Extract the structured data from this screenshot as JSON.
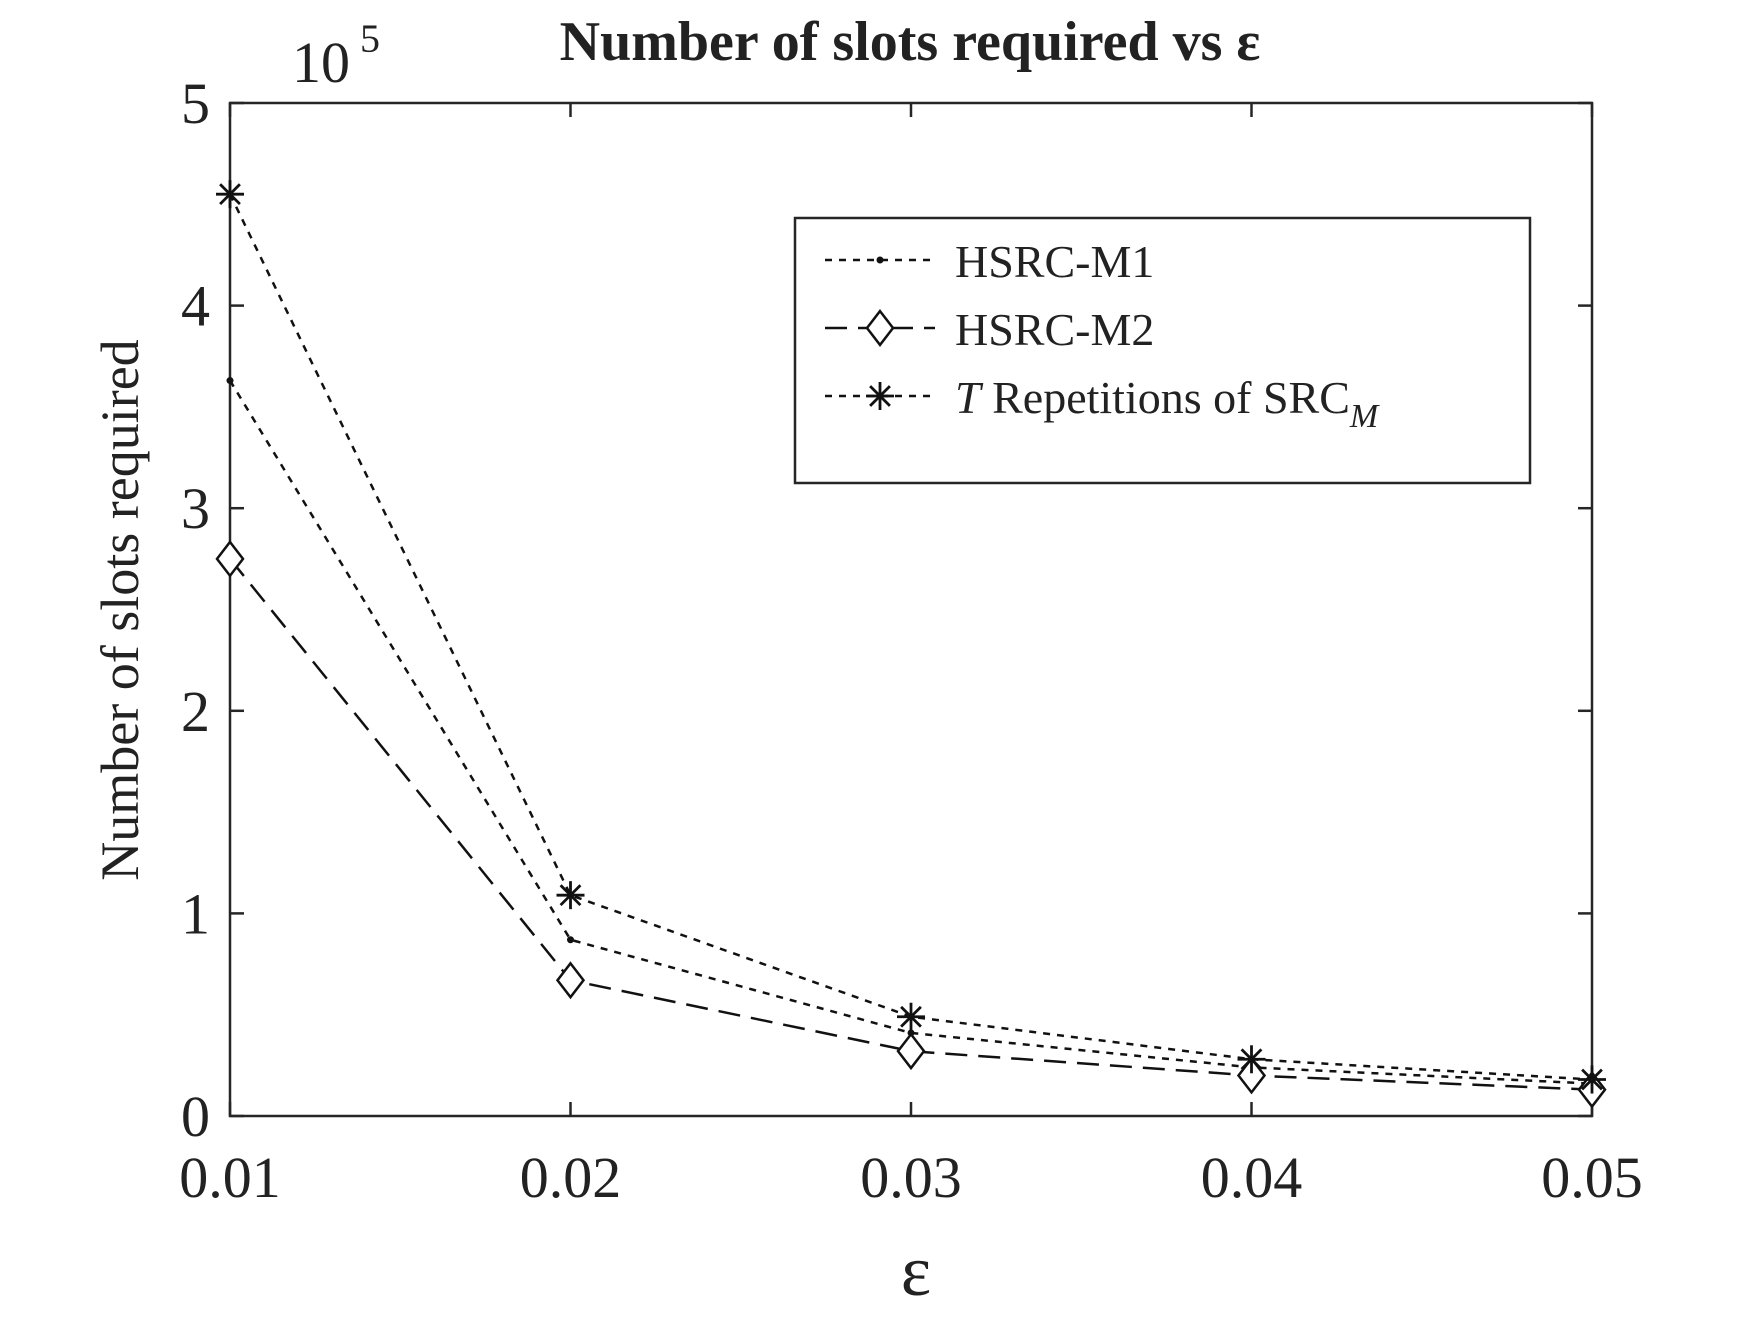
{
  "chart_data": {
    "type": "line",
    "title": "Number of slots required vs ε",
    "xlabel": "ε",
    "ylabel": "Number of slots required",
    "y_multiplier_label": "10",
    "y_multiplier_exponent": "5",
    "x": [
      0.01,
      0.02,
      0.03,
      0.04,
      0.05
    ],
    "x_tick_labels": [
      "0.01",
      "0.02",
      "0.03",
      "0.04",
      "0.05"
    ],
    "xlim": [
      0.01,
      0.05
    ],
    "ylim": [
      0,
      5
    ],
    "y_ticks": [
      0,
      1,
      2,
      3,
      4,
      5
    ],
    "y_tick_labels": [
      "0",
      "1",
      "2",
      "3",
      "4",
      "5"
    ],
    "grid": false,
    "legend_position": "top-right",
    "series": [
      {
        "name": "HSRC-M1",
        "marker": "dot",
        "line_style": "dotted",
        "values": [
          3.63,
          0.87,
          0.41,
          0.24,
          0.16
        ]
      },
      {
        "name": "HSRC-M2",
        "marker": "diamond",
        "line_style": "dashed",
        "values": [
          2.75,
          0.67,
          0.32,
          0.2,
          0.13
        ]
      },
      {
        "name_italic": "T",
        "name_main": " Repetitions of SRC",
        "name_subscript": "M",
        "marker": "asterisk",
        "line_style": "dotted",
        "values": [
          4.55,
          1.09,
          0.49,
          0.28,
          0.18
        ]
      }
    ]
  }
}
